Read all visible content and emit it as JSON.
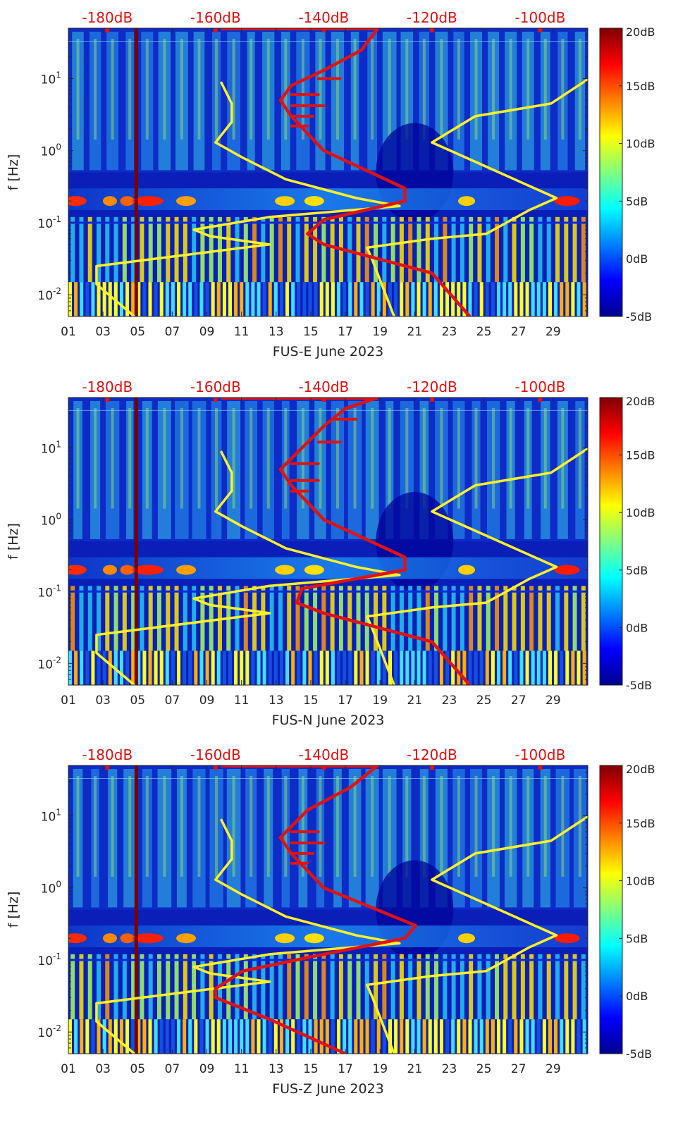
{
  "figure": {
    "subplot_count": 3
  },
  "colors": {
    "noise_model": "#fff02a",
    "spectrum": "#e01212",
    "top_axis_text": "#e01010",
    "axis_text": "#262626",
    "colormap": [
      "#00008f",
      "#0000ff",
      "#0080ff",
      "#00ffff",
      "#80ff80",
      "#ffff00",
      "#ff8000",
      "#ff0000",
      "#800000"
    ]
  },
  "shared_axes": {
    "x_ticks": [
      "01",
      "03",
      "05",
      "07",
      "09",
      "11",
      "13",
      "15",
      "17",
      "19",
      "21",
      "23",
      "25",
      "27",
      "29"
    ],
    "x_tick_days": [
      1,
      3,
      5,
      7,
      9,
      11,
      13,
      15,
      17,
      19,
      21,
      23,
      25,
      27,
      29
    ],
    "xlim_days": [
      1,
      31
    ],
    "ylabel": "f [Hz]",
    "y_scale": "log",
    "ylim_hz": [
      0.005,
      50
    ],
    "y_ticks": [
      0.01,
      0.1,
      1,
      10
    ],
    "y_tick_labels": [
      {
        "base": "10",
        "exp": "-2"
      },
      {
        "base": "10",
        "exp": "-1"
      },
      {
        "base": "10",
        "exp": "0"
      },
      {
        "base": "10",
        "exp": "1"
      }
    ],
    "top_labels": [
      "-180dB",
      "-160dB",
      "-140dB",
      "-120dB",
      "-100dB"
    ],
    "top_db_values": [
      -180,
      -160,
      -140,
      -120,
      -100
    ],
    "top_db_range": [
      -187.2,
      -91.2
    ],
    "colorbar_labels": [
      "20dB",
      "15dB",
      "10dB",
      "5dB",
      "0dB",
      "-5dB"
    ],
    "colorbar_values": [
      20,
      15,
      10,
      5,
      0,
      -5
    ],
    "colorbar_range": [
      -5,
      20
    ]
  },
  "chart_data": [
    {
      "type": "heatmap",
      "title": "",
      "xlabel": "FUS-E June 2023",
      "ylabel": "f [Hz]",
      "series": [
        {
          "name": "noise model (yellow)",
          "unit": "dB",
          "points": [
            [
              -175,
              0.005
            ],
            [
              -182,
              0.014
            ],
            [
              -182,
              0.025
            ],
            [
              -150,
              0.05
            ],
            [
              -161,
              0.065
            ],
            [
              -164,
              0.08
            ],
            [
              -150,
              0.12
            ],
            [
              -126,
              0.17
            ],
            [
              -134,
              0.22
            ],
            [
              -147,
              0.4
            ],
            [
              -155,
              0.8
            ],
            [
              -160,
              1.3
            ],
            [
              -157,
              2.5
            ],
            [
              -157,
              4.5
            ],
            [
              -159,
              9
            ]
          ]
        },
        {
          "name": "noise model (yellow)",
          "unit": "dB",
          "points": [
            [
              -127,
              0.005
            ],
            [
              -131,
              0.03
            ],
            [
              -132,
              0.045
            ],
            [
              -120,
              0.06
            ],
            [
              -110,
              0.07
            ],
            [
              -102,
              0.15
            ],
            [
              -97,
              0.22
            ],
            [
              -110,
              0.6
            ],
            [
              -120,
              1.3
            ],
            [
              -112,
              3
            ],
            [
              -98,
              4.5
            ],
            [
              -91,
              10
            ]
          ]
        },
        {
          "name": "spectrum (red)",
          "unit": "dB",
          "points": [
            [
              -113,
              0.005
            ],
            [
              -120,
              0.02
            ],
            [
              -140,
              0.05
            ],
            [
              -143,
              0.07
            ],
            [
              -140,
              0.11
            ],
            [
              -125,
              0.2
            ],
            [
              -125,
              0.3
            ],
            [
              -140,
              1
            ],
            [
              -146,
              3
            ],
            [
              -148,
              5
            ],
            [
              -146,
              8
            ],
            [
              -140,
              13
            ],
            [
              -133,
              25
            ],
            [
              -130,
              50
            ]
          ]
        },
        {
          "name": "spectrum spikes (red)",
          "unit": "dB",
          "points": [
            [
              -146,
              4.2
            ],
            [
              -140,
              4.2
            ],
            [
              -146,
              3
            ],
            [
              -142,
              3
            ],
            [
              -146,
              2.2
            ],
            [
              -143,
              2.2
            ],
            [
              -146,
              6
            ],
            [
              -141,
              6
            ],
            [
              -141,
              10
            ],
            [
              -137,
              10
            ]
          ]
        }
      ],
      "notes": {
        "dark_column_day": 4.9
      }
    },
    {
      "type": "heatmap",
      "title": "",
      "xlabel": "FUS-N June 2023",
      "ylabel": "f [Hz]",
      "series": [
        {
          "name": "noise model (yellow)",
          "unit": "dB",
          "points": [
            [
              -175,
              0.005
            ],
            [
              -182,
              0.014
            ],
            [
              -182,
              0.025
            ],
            [
              -150,
              0.05
            ],
            [
              -161,
              0.065
            ],
            [
              -164,
              0.08
            ],
            [
              -150,
              0.12
            ],
            [
              -126,
              0.17
            ],
            [
              -134,
              0.22
            ],
            [
              -147,
              0.4
            ],
            [
              -155,
              0.8
            ],
            [
              -160,
              1.3
            ],
            [
              -157,
              2.5
            ],
            [
              -157,
              4.5
            ],
            [
              -159,
              9
            ]
          ]
        },
        {
          "name": "noise model (yellow)",
          "unit": "dB",
          "points": [
            [
              -127,
              0.005
            ],
            [
              -131,
              0.03
            ],
            [
              -132,
              0.045
            ],
            [
              -120,
              0.06
            ],
            [
              -110,
              0.07
            ],
            [
              -102,
              0.15
            ],
            [
              -97,
              0.22
            ],
            [
              -110,
              0.6
            ],
            [
              -120,
              1.3
            ],
            [
              -112,
              3
            ],
            [
              -98,
              4.5
            ],
            [
              -91,
              10
            ]
          ]
        },
        {
          "name": "spectrum (red)",
          "unit": "dB",
          "points": [
            [
              -113,
              0.005
            ],
            [
              -120,
              0.02
            ],
            [
              -140,
              0.05
            ],
            [
              -145,
              0.07
            ],
            [
              -144,
              0.11
            ],
            [
              -125,
              0.2
            ],
            [
              -125,
              0.3
            ],
            [
              -140,
              1
            ],
            [
              -146,
              3
            ],
            [
              -148,
              5
            ],
            [
              -144,
              10
            ],
            [
              -140,
              20
            ],
            [
              -136,
              35
            ],
            [
              -130,
              50
            ]
          ]
        },
        {
          "name": "spectrum spikes (red)",
          "unit": "dB",
          "points": [
            [
              -146,
              3.5
            ],
            [
              -141,
              3.5
            ],
            [
              -146,
              2.5
            ],
            [
              -143,
              2.5
            ],
            [
              -146,
              6
            ],
            [
              -141,
              6
            ],
            [
              -141,
              12
            ],
            [
              -137,
              12
            ],
            [
              -138,
              25
            ],
            [
              -134,
              25
            ]
          ]
        }
      ],
      "notes": {
        "dark_column_day": 4.9
      }
    },
    {
      "type": "heatmap",
      "title": "",
      "xlabel": "FUS-Z June 2023",
      "ylabel": "f [Hz]",
      "series": [
        {
          "name": "noise model (yellow)",
          "unit": "dB",
          "points": [
            [
              -175,
              0.005
            ],
            [
              -182,
              0.014
            ],
            [
              -182,
              0.025
            ],
            [
              -150,
              0.05
            ],
            [
              -161,
              0.065
            ],
            [
              -164,
              0.08
            ],
            [
              -150,
              0.12
            ],
            [
              -126,
              0.17
            ],
            [
              -134,
              0.22
            ],
            [
              -147,
              0.4
            ],
            [
              -155,
              0.8
            ],
            [
              -160,
              1.3
            ],
            [
              -157,
              2.5
            ],
            [
              -157,
              4.5
            ],
            [
              -159,
              9
            ]
          ]
        },
        {
          "name": "noise model (yellow)",
          "unit": "dB",
          "points": [
            [
              -127,
              0.005
            ],
            [
              -131,
              0.03
            ],
            [
              -132,
              0.045
            ],
            [
              -120,
              0.06
            ],
            [
              -110,
              0.07
            ],
            [
              -102,
              0.15
            ],
            [
              -97,
              0.22
            ],
            [
              -110,
              0.6
            ],
            [
              -120,
              1.3
            ],
            [
              -112,
              3
            ],
            [
              -98,
              4.5
            ],
            [
              -91,
              10
            ]
          ]
        },
        {
          "name": "spectrum (red)",
          "unit": "dB",
          "points": [
            [
              -136,
              0.005
            ],
            [
              -150,
              0.015
            ],
            [
              -160,
              0.03
            ],
            [
              -160,
              0.04
            ],
            [
              -155,
              0.07
            ],
            [
              -140,
              0.12
            ],
            [
              -125,
              0.2
            ],
            [
              -123,
              0.3
            ],
            [
              -140,
              1
            ],
            [
              -146,
              3
            ],
            [
              -148,
              5
            ],
            [
              -143,
              12
            ],
            [
              -135,
              25
            ],
            [
              -130,
              50
            ]
          ]
        },
        {
          "name": "spectrum spikes (red)",
          "unit": "dB",
          "points": [
            [
              -146,
              4.2
            ],
            [
              -140,
              4.2
            ],
            [
              -146,
              3
            ],
            [
              -142,
              3
            ],
            [
              -146,
              2.2
            ],
            [
              -143,
              2.2
            ],
            [
              -146,
              6
            ],
            [
              -141,
              6
            ]
          ]
        }
      ],
      "notes": {
        "dark_column_day": 4.9
      }
    }
  ]
}
